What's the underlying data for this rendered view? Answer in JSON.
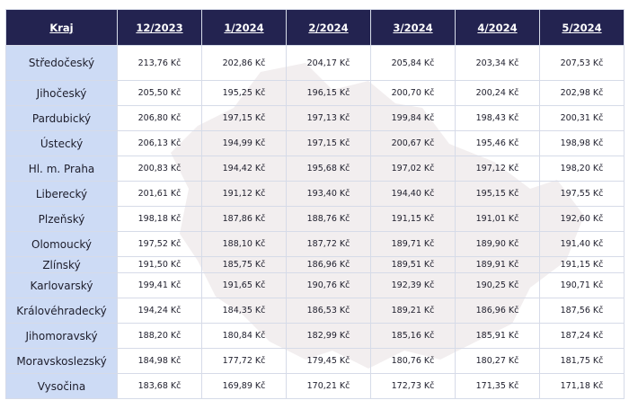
{
  "table": {
    "headers": [
      "Kraj",
      "12/2023",
      "1/2024",
      "2/2024",
      "3/2024",
      "4/2024",
      "5/2024"
    ],
    "rows": [
      {
        "region": "Středočeský",
        "values": [
          "213,76 Kč",
          "202,86 Kč",
          "204,17 Kč",
          "205,84 Kč",
          "203,34 Kč",
          "207,53 Kč"
        ]
      },
      {
        "region": "Jihočeský",
        "values": [
          "205,50 Kč",
          "195,25 Kč",
          "196,15 Kč",
          "200,70 Kč",
          "200,24 Kč",
          "202,98 Kč"
        ]
      },
      {
        "region": "Pardubický",
        "values": [
          "206,80 Kč",
          "197,15 Kč",
          "197,13 Kč",
          "199,84 Kč",
          "198,43 Kč",
          "200,31 Kč"
        ]
      },
      {
        "region": "Ústecký",
        "values": [
          "206,13 Kč",
          "194,99 Kč",
          "197,15 Kč",
          "200,67 Kč",
          "195,46 Kč",
          "198,98 Kč"
        ]
      },
      {
        "region": "Hl. m. Praha",
        "values": [
          "200,83 Kč",
          "194,42 Kč",
          "195,68 Kč",
          "197,02 Kč",
          "197,12 Kč",
          "198,20 Kč"
        ]
      },
      {
        "region": "Liberecký",
        "values": [
          "201,61 Kč",
          "191,12 Kč",
          "193,40 Kč",
          "194,40 Kč",
          "195,15 Kč",
          "197,55 Kč"
        ]
      },
      {
        "region": "Plzeňský",
        "values": [
          "198,18 Kč",
          "187,86 Kč",
          "188,76 Kč",
          "191,15 Kč",
          "191,01 Kč",
          "192,60 Kč"
        ]
      },
      {
        "region": "Olomoucký",
        "values": [
          "197,52 Kč",
          "188,10 Kč",
          "187,72 Kč",
          "189,71 Kč",
          "189,90 Kč",
          "191,40 Kč"
        ]
      },
      {
        "region": "Zlínský",
        "values": [
          "191,50 Kč",
          "185,75 Kč",
          "186,96 Kč",
          "189,51 Kč",
          "189,91 Kč",
          "191,15 Kč"
        ]
      },
      {
        "region": "Karlovarský",
        "values": [
          "199,41 Kč",
          "191,65 Kč",
          "190,76 Kč",
          "192,39 Kč",
          "190,25 Kč",
          "190,71 Kč"
        ]
      },
      {
        "region": "Královéhradecký",
        "values": [
          "194,24 Kč",
          "184,35 Kč",
          "186,53 Kč",
          "189,21 Kč",
          "186,96 Kč",
          "187,56 Kč"
        ]
      },
      {
        "region": "Jihomoravský",
        "values": [
          "188,20 Kč",
          "180,84 Kč",
          "182,99 Kč",
          "185,16 Kč",
          "185,91 Kč",
          "187,24 Kč"
        ]
      },
      {
        "region": "Moravskoslezský",
        "values": [
          "184,98 Kč",
          "177,72 Kč",
          "179,45 Kč",
          "180,76 Kč",
          "180,27 Kč",
          "181,75 Kč"
        ]
      },
      {
        "region": "Vysočina",
        "values": [
          "183,68 Kč",
          "169,89 Kč",
          "170,21 Kč",
          "172,73 Kč",
          "171,35 Kč",
          "171,18 Kč"
        ]
      }
    ]
  },
  "colors": {
    "header_bg": "#232350",
    "region_bg": "#c6d6f4",
    "map_shape": "#f3eff0"
  },
  "background_graphic": "czech-map-silhouette"
}
